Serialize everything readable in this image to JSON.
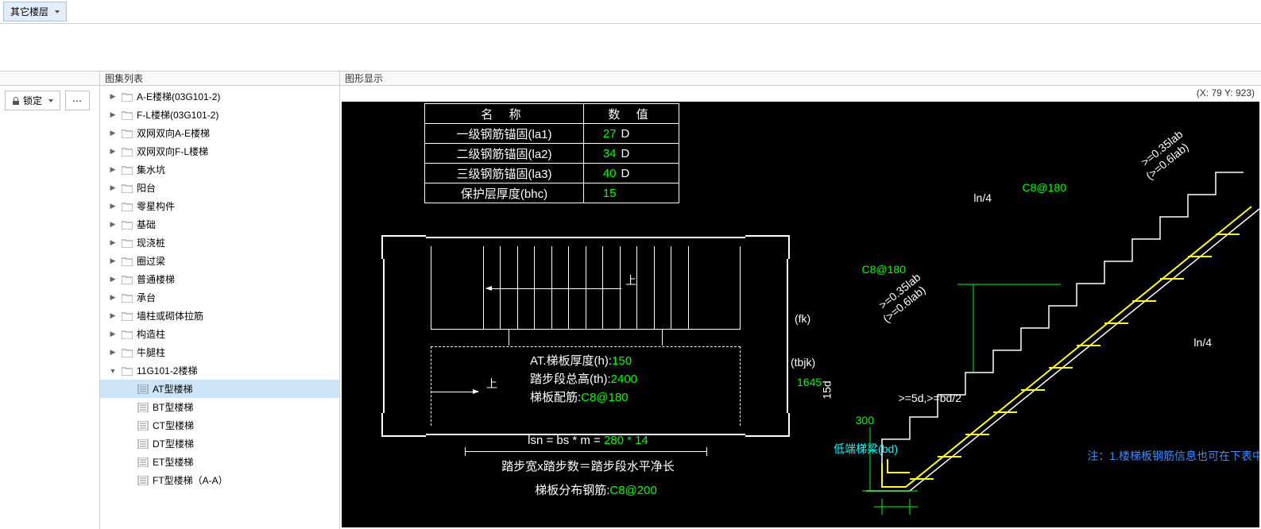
{
  "toolbar": {
    "other_floors": "其它楼层"
  },
  "side": {
    "lock": "锁定"
  },
  "tree": {
    "header": "图集列表",
    "items": [
      {
        "label": "A-E楼梯(03G101-2)",
        "type": "folder",
        "level": 1,
        "arrow": "▶"
      },
      {
        "label": "F-L楼梯(03G101-2)",
        "type": "folder",
        "level": 1,
        "arrow": "▶"
      },
      {
        "label": "双网双向A-E楼梯",
        "type": "folder",
        "level": 1,
        "arrow": "▶"
      },
      {
        "label": "双网双向F-L楼梯",
        "type": "folder",
        "level": 1,
        "arrow": "▶"
      },
      {
        "label": "集水坑",
        "type": "folder",
        "level": 1,
        "arrow": "▶"
      },
      {
        "label": "阳台",
        "type": "folder",
        "level": 1,
        "arrow": "▶"
      },
      {
        "label": "零星构件",
        "type": "folder",
        "level": 1,
        "arrow": "▶"
      },
      {
        "label": "基础",
        "type": "folder",
        "level": 1,
        "arrow": "▶"
      },
      {
        "label": "现浇桩",
        "type": "folder",
        "level": 1,
        "arrow": "▶"
      },
      {
        "label": "圈过梁",
        "type": "folder",
        "level": 1,
        "arrow": "▶"
      },
      {
        "label": "普通楼梯",
        "type": "folder",
        "level": 1,
        "arrow": "▶"
      },
      {
        "label": "承台",
        "type": "folder",
        "level": 1,
        "arrow": "▶"
      },
      {
        "label": "墙柱或砌体拉筋",
        "type": "folder",
        "level": 1,
        "arrow": "▶"
      },
      {
        "label": "构造柱",
        "type": "folder",
        "level": 1,
        "arrow": "▶"
      },
      {
        "label": "牛腿柱",
        "type": "folder",
        "level": 1,
        "arrow": "▶"
      },
      {
        "label": "11G101-2楼梯",
        "type": "folder",
        "level": 1,
        "arrow": "▼"
      },
      {
        "label": "AT型楼梯",
        "type": "doc",
        "level": 2,
        "selected": true
      },
      {
        "label": "BT型楼梯",
        "type": "doc",
        "level": 2
      },
      {
        "label": "CT型楼梯",
        "type": "doc",
        "level": 2
      },
      {
        "label": "DT型楼梯",
        "type": "doc",
        "level": 2
      },
      {
        "label": "ET型楼梯",
        "type": "doc",
        "level": 2
      },
      {
        "label": "FT型楼梯（A-A）",
        "type": "doc",
        "level": 2
      }
    ]
  },
  "canvas": {
    "header": "图形显示",
    "coord_x": "79",
    "coord_y": "923",
    "table": {
      "h_name": "名 称",
      "h_val": "数 值",
      "rows": [
        {
          "name": "一级钢筋锚固(la1)",
          "num": "27",
          "unit": "D"
        },
        {
          "name": "二级钢筋锚固(la2)",
          "num": "34",
          "unit": "D"
        },
        {
          "name": "三级钢筋锚固(la3)",
          "num": "40",
          "unit": "D"
        },
        {
          "name": "保护层厚度(bhc)",
          "num": "15",
          "unit": ""
        }
      ]
    },
    "plan": {
      "up1": "上",
      "up2": "上",
      "l1": "AT.梯板厚度(h):",
      "v1": "150",
      "l2": "踏步段总高(th):",
      "v2": "2400",
      "l3": "梯板配筋:",
      "v3": "C8@180",
      "fk": "(fk)",
      "tbjk_l": "(tbjk)",
      "tbjk_v": "1645",
      "formula_l": "lsn = bs * m = ",
      "formula_n": "280 * 14",
      "formula2": "踏步宽x踏步数＝踏步段水平净长",
      "dist_l": "梯板分布钢筋:",
      "dist_v": "C8@200"
    },
    "stair": {
      "c8_1": "C8@180",
      "c8_2": "C8@180",
      "ln4_1": "ln/4",
      "ln4_2": "ln/4",
      "lab1": ">=0.35lab",
      "lab1b": "(>=0.6lab)",
      "lab2": ">=0.35lab",
      "lab2b": "(>=0.6lab)",
      "d15": "15d",
      "d300": "300",
      "d5bd": ">=5d,>=bd/2",
      "beam": "低端梯梁(bd)",
      "note": "注：1.楼梯板钢筋信息也可在下表中"
    }
  }
}
